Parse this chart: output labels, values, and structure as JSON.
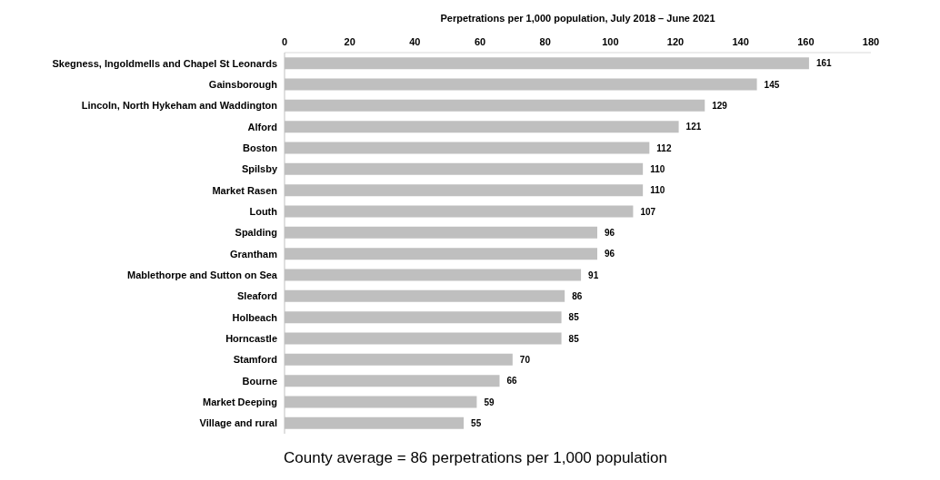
{
  "chart_data": {
    "type": "bar",
    "orientation": "horizontal",
    "xlabel": "Perpetrations per 1,000 population, July 2018 – June 2021",
    "categories": [
      "Skegness, Ingoldmells and Chapel St Leonards",
      "Gainsborough",
      "Lincoln, North Hykeham and Waddington",
      "Alford",
      "Boston",
      "Spilsby",
      "Market Rasen",
      "Louth",
      "Spalding",
      "Grantham",
      "Mablethorpe and Sutton on Sea",
      "Sleaford",
      "Holbeach",
      "Horncastle",
      "Stamford",
      "Bourne",
      "Market Deeping",
      "Village and rural"
    ],
    "values": [
      161,
      145,
      129,
      121,
      112,
      110,
      110,
      107,
      96,
      96,
      91,
      86,
      85,
      85,
      70,
      66,
      59,
      55
    ],
    "color": "#bfbfbf",
    "xlim": [
      0,
      180
    ],
    "xticks": [
      0,
      20,
      40,
      60,
      80,
      100,
      120,
      140,
      160,
      180
    ],
    "grid": false,
    "data_labels": true,
    "annotations": [
      "County average = 86 perpetrations per 1,000 population"
    ]
  }
}
